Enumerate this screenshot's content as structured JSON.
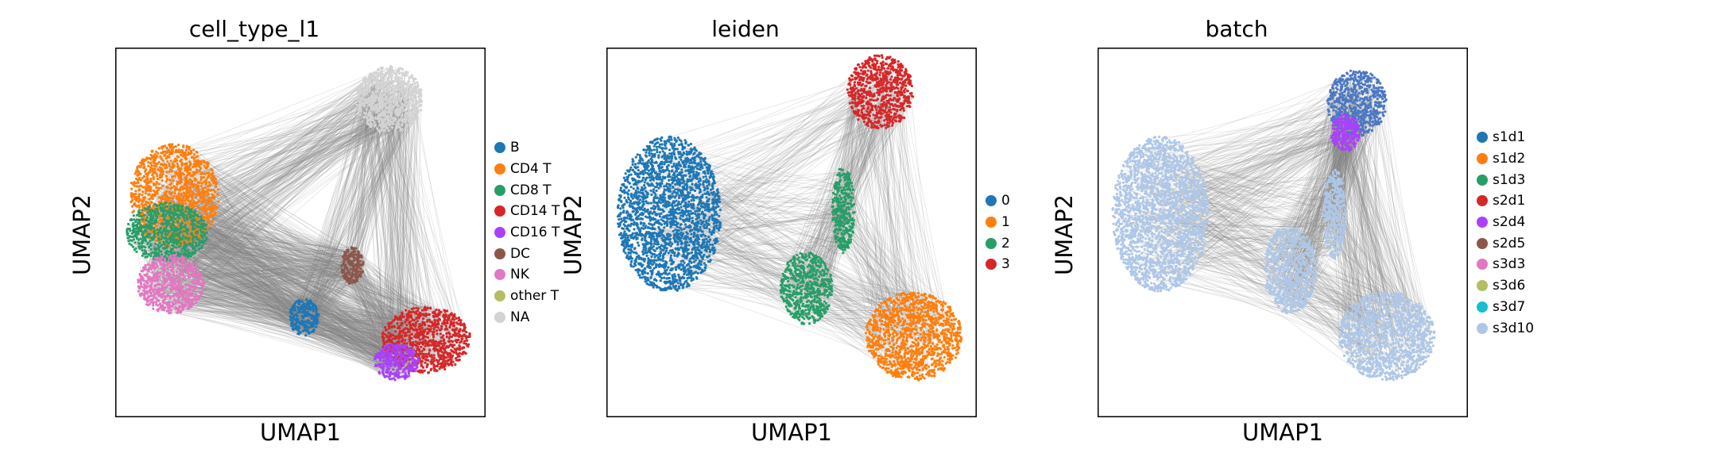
{
  "chart_data": [
    {
      "type": "scatter",
      "title": "cell_type_l1",
      "xlabel": "UMAP1",
      "ylabel": "UMAP2",
      "grid": false,
      "ticks": false,
      "legend": {
        "placement": "right",
        "entries": [
          {
            "name": "B",
            "color": "#1f77b4"
          },
          {
            "name": "CD4 T",
            "color": "#ff7f0e"
          },
          {
            "name": "CD8 T",
            "color": "#279e68"
          },
          {
            "name": "CD14 T",
            "color": "#d62728"
          },
          {
            "name": "CD16 T",
            "color": "#aa40fc"
          },
          {
            "name": "DC",
            "color": "#8c564b"
          },
          {
            "name": "NK",
            "color": "#e377c2"
          },
          {
            "name": "other T",
            "color": "#b5bd61"
          },
          {
            "name": "NA",
            "color": "#d3d3d3"
          }
        ]
      },
      "edge_color": "#808080",
      "clusters": [
        {
          "color": "#d3d3d3",
          "cx": 0.74,
          "cy": 0.86,
          "rx": 0.09,
          "ry": 0.09
        },
        {
          "color": "#ff7f0e",
          "cx": 0.16,
          "cy": 0.6,
          "rx": 0.12,
          "ry": 0.14
        },
        {
          "color": "#279e68",
          "cx": 0.14,
          "cy": 0.5,
          "rx": 0.11,
          "ry": 0.08
        },
        {
          "color": "#e377c2",
          "cx": 0.15,
          "cy": 0.36,
          "rx": 0.09,
          "ry": 0.08
        },
        {
          "color": "#1f77b4",
          "cx": 0.51,
          "cy": 0.27,
          "rx": 0.04,
          "ry": 0.05
        },
        {
          "color": "#8c564b",
          "cx": 0.64,
          "cy": 0.41,
          "rx": 0.03,
          "ry": 0.05
        },
        {
          "color": "#d62728",
          "cx": 0.84,
          "cy": 0.21,
          "rx": 0.12,
          "ry": 0.09
        },
        {
          "color": "#aa40fc",
          "cx": 0.76,
          "cy": 0.15,
          "rx": 0.06,
          "ry": 0.05
        }
      ]
    },
    {
      "type": "scatter",
      "title": "leiden",
      "xlabel": "UMAP1",
      "ylabel": "UMAP2",
      "grid": false,
      "ticks": false,
      "legend": {
        "placement": "right",
        "entries": [
          {
            "name": "0",
            "color": "#1f77b4"
          },
          {
            "name": "1",
            "color": "#ff7f0e"
          },
          {
            "name": "2",
            "color": "#279e68"
          },
          {
            "name": "3",
            "color": "#d62728"
          }
        ]
      },
      "edge_color": "#808080",
      "clusters": [
        {
          "color": "#1f77b4",
          "cx": 0.17,
          "cy": 0.55,
          "rx": 0.14,
          "ry": 0.21
        },
        {
          "color": "#d62728",
          "cx": 0.74,
          "cy": 0.88,
          "rx": 0.09,
          "ry": 0.1
        },
        {
          "color": "#279e68",
          "cx": 0.54,
          "cy": 0.35,
          "rx": 0.07,
          "ry": 0.1
        },
        {
          "color": "#279e68",
          "cx": 0.64,
          "cy": 0.56,
          "rx": 0.03,
          "ry": 0.12
        },
        {
          "color": "#ff7f0e",
          "cx": 0.83,
          "cy": 0.22,
          "rx": 0.13,
          "ry": 0.12
        }
      ]
    },
    {
      "type": "scatter",
      "title": "batch",
      "xlabel": "UMAP1",
      "ylabel": "UMAP2",
      "grid": false,
      "ticks": false,
      "legend": {
        "placement": "right",
        "entries": [
          {
            "name": "s1d1",
            "color": "#1f77b4"
          },
          {
            "name": "s1d2",
            "color": "#ff7f0e"
          },
          {
            "name": "s1d3",
            "color": "#279e68"
          },
          {
            "name": "s2d1",
            "color": "#d62728"
          },
          {
            "name": "s2d4",
            "color": "#aa40fc"
          },
          {
            "name": "s2d5",
            "color": "#8c564b"
          },
          {
            "name": "s3d3",
            "color": "#e377c2"
          },
          {
            "name": "s3d6",
            "color": "#b5bd61"
          },
          {
            "name": "s3d7",
            "color": "#17becf"
          },
          {
            "name": "s3d10",
            "color": "#aec7e8"
          }
        ]
      },
      "edge_color": "#808080",
      "clusters": [
        {
          "color": "#aec7e8",
          "cx": 0.17,
          "cy": 0.55,
          "rx": 0.13,
          "ry": 0.21
        },
        {
          "color": "#4a78c4",
          "cx": 0.7,
          "cy": 0.85,
          "rx": 0.08,
          "ry": 0.09
        },
        {
          "color": "#aec7e8",
          "cx": 0.52,
          "cy": 0.4,
          "rx": 0.07,
          "ry": 0.12
        },
        {
          "color": "#aec7e8",
          "cx": 0.64,
          "cy": 0.55,
          "rx": 0.03,
          "ry": 0.12
        },
        {
          "color": "#aec7e8",
          "cx": 0.78,
          "cy": 0.22,
          "rx": 0.13,
          "ry": 0.12
        },
        {
          "color": "#aa40fc",
          "cx": 0.67,
          "cy": 0.77,
          "rx": 0.04,
          "ry": 0.05
        }
      ]
    }
  ]
}
